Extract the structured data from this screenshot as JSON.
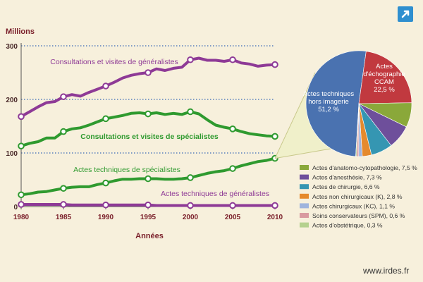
{
  "header": {
    "expand_icon": "expand-icon"
  },
  "footer": {
    "url": "www.irdes.fr"
  },
  "colors": {
    "background": "#f7f0dc",
    "purple": "#8e3a96",
    "green": "#2f9a2f",
    "grid": "#3a68b5",
    "pie_main": "#4a72b0",
    "pie_echo": "#c1393f"
  },
  "chart_data": [
    {
      "type": "line",
      "ylabel": "Millions",
      "xlabel": "Années",
      "ylim": [
        0,
        300
      ],
      "yticks": [
        "0",
        "100",
        "200",
        "300"
      ],
      "xticks": [
        "1980",
        "1985",
        "1990",
        "1995",
        "2000",
        "2005",
        "2010"
      ],
      "grid": "horizontal dotted at 100, 200, 300",
      "series": [
        {
          "name": "Consultations et visites de généralistes",
          "color": "#8e3a96",
          "x": [
            1980,
            1981,
            1982,
            1983,
            1984,
            1985,
            1986,
            1987,
            1988,
            1989,
            1990,
            1991,
            1992,
            1993,
            1994,
            1995,
            1996,
            1997,
            1998,
            1999,
            2000,
            2001,
            2002,
            2003,
            2004,
            2005,
            2006,
            2007,
            2008,
            2009,
            2010
          ],
          "values": [
            168,
            177,
            186,
            194,
            196,
            205,
            209,
            206,
            213,
            219,
            225,
            232,
            240,
            245,
            248,
            250,
            257,
            254,
            258,
            260,
            274,
            277,
            273,
            273,
            271,
            274,
            268,
            266,
            262,
            264,
            265
          ],
          "marked": [
            1980,
            1985,
            1990,
            1995,
            2000,
            2005,
            2010
          ]
        },
        {
          "name": "Consultations et visites de spécialistes",
          "color": "#2f9a2f",
          "x": [
            1980,
            1981,
            1982,
            1983,
            1984,
            1985,
            1986,
            1987,
            1988,
            1989,
            1990,
            1991,
            1992,
            1993,
            1994,
            1995,
            1996,
            1997,
            1998,
            1999,
            2000,
            2001,
            2002,
            2003,
            2004,
            2005,
            2006,
            2007,
            2008,
            2009,
            2010
          ],
          "values": [
            113,
            118,
            121,
            128,
            128,
            140,
            145,
            147,
            152,
            158,
            164,
            167,
            170,
            174,
            175,
            173,
            175,
            172,
            174,
            172,
            177,
            173,
            162,
            152,
            148,
            145,
            140,
            136,
            134,
            132,
            131
          ],
          "marked": [
            1980,
            1985,
            1990,
            1995,
            2000,
            2005,
            2010
          ]
        },
        {
          "name": "Actes techniques de spécialistes",
          "color": "#2f9a2f",
          "x": [
            1980,
            1981,
            1982,
            1983,
            1984,
            1985,
            1986,
            1987,
            1988,
            1989,
            1990,
            1991,
            1992,
            1993,
            1994,
            1995,
            1996,
            1997,
            1998,
            1999,
            2000,
            2001,
            2002,
            2003,
            2004,
            2005,
            2006,
            2007,
            2008,
            2009,
            2010
          ],
          "values": [
            22,
            24,
            27,
            28,
            31,
            34,
            36,
            37,
            37,
            41,
            44,
            48,
            51,
            51,
            52,
            52,
            52,
            51,
            51,
            52,
            54,
            58,
            62,
            65,
            67,
            71,
            76,
            80,
            84,
            86,
            90
          ],
          "marked": [
            1980,
            1985,
            1990,
            1995,
            2000,
            2005,
            2010
          ]
        },
        {
          "name": "Actes techniques de généralistes",
          "color": "#8e3a96",
          "x": [
            1980,
            1981,
            1982,
            1983,
            1984,
            1985,
            1986,
            1987,
            1988,
            1989,
            1990,
            1991,
            1992,
            1993,
            1994,
            1995,
            1996,
            1997,
            1998,
            1999,
            2000,
            2001,
            2002,
            2003,
            2004,
            2005,
            2006,
            2007,
            2008,
            2009,
            2010
          ],
          "values": [
            4,
            4,
            4,
            4,
            4,
            4,
            3,
            3,
            3,
            3,
            3,
            3,
            3,
            3,
            3,
            3,
            2,
            2,
            2,
            2,
            2,
            2,
            2,
            2,
            2,
            2,
            2,
            2,
            2,
            2,
            2
          ],
          "marked": [
            1980,
            1985,
            1990,
            1995,
            2000,
            2005,
            2010
          ]
        }
      ]
    },
    {
      "type": "pie",
      "slices": [
        {
          "name": "Actes techniques hors imagerie",
          "value": 51.2,
          "label": "51,2 %",
          "color": "#4a72b0"
        },
        {
          "name": "Actes d'échographie CCAM",
          "value": 22.5,
          "label": "22,5 %",
          "color": "#c1393f"
        },
        {
          "name": "Actes d'anatomo-cytopathologie",
          "value": 7.5,
          "legend": "Actes d'anatomo-cytopathologie, 7,5 %",
          "color": "#8aa83a"
        },
        {
          "name": "Actes d'anesthésie",
          "value": 7.3,
          "legend": "Actes d'anesthésie, 7,3 %",
          "color": "#6e4f9b"
        },
        {
          "name": "Actes de chirurgie",
          "value": 6.6,
          "legend": "Actes de chirurgie, 6,6 %",
          "color": "#3596b2"
        },
        {
          "name": "Actes non chirurgicaux (K)",
          "value": 2.8,
          "legend": "Actes non chirurgicaux (K), 2,8 %",
          "color": "#e58a2d"
        },
        {
          "name": "Actes chirurgicaux (KC)",
          "value": 1.1,
          "legend": "Actes chirurgicaux (KC), 1,1 %",
          "color": "#9fb4dd"
        },
        {
          "name": "Soins conservateurs (SPM)",
          "value": 0.6,
          "legend": "Soins conservateurs (SPM), 0,6 %",
          "color": "#d99aa0"
        },
        {
          "name": "Actes d'obstétrique",
          "value": 0.3,
          "legend": "Actes d'obstétrique, 0,3 %",
          "color": "#b5d18f"
        }
      ],
      "inner_labels": [
        [
          "Actes techniques",
          "hors imagerie",
          "51,2 %"
        ],
        [
          "Actes",
          "d'échographie",
          "CCAM",
          "22,5 %"
        ]
      ]
    }
  ]
}
